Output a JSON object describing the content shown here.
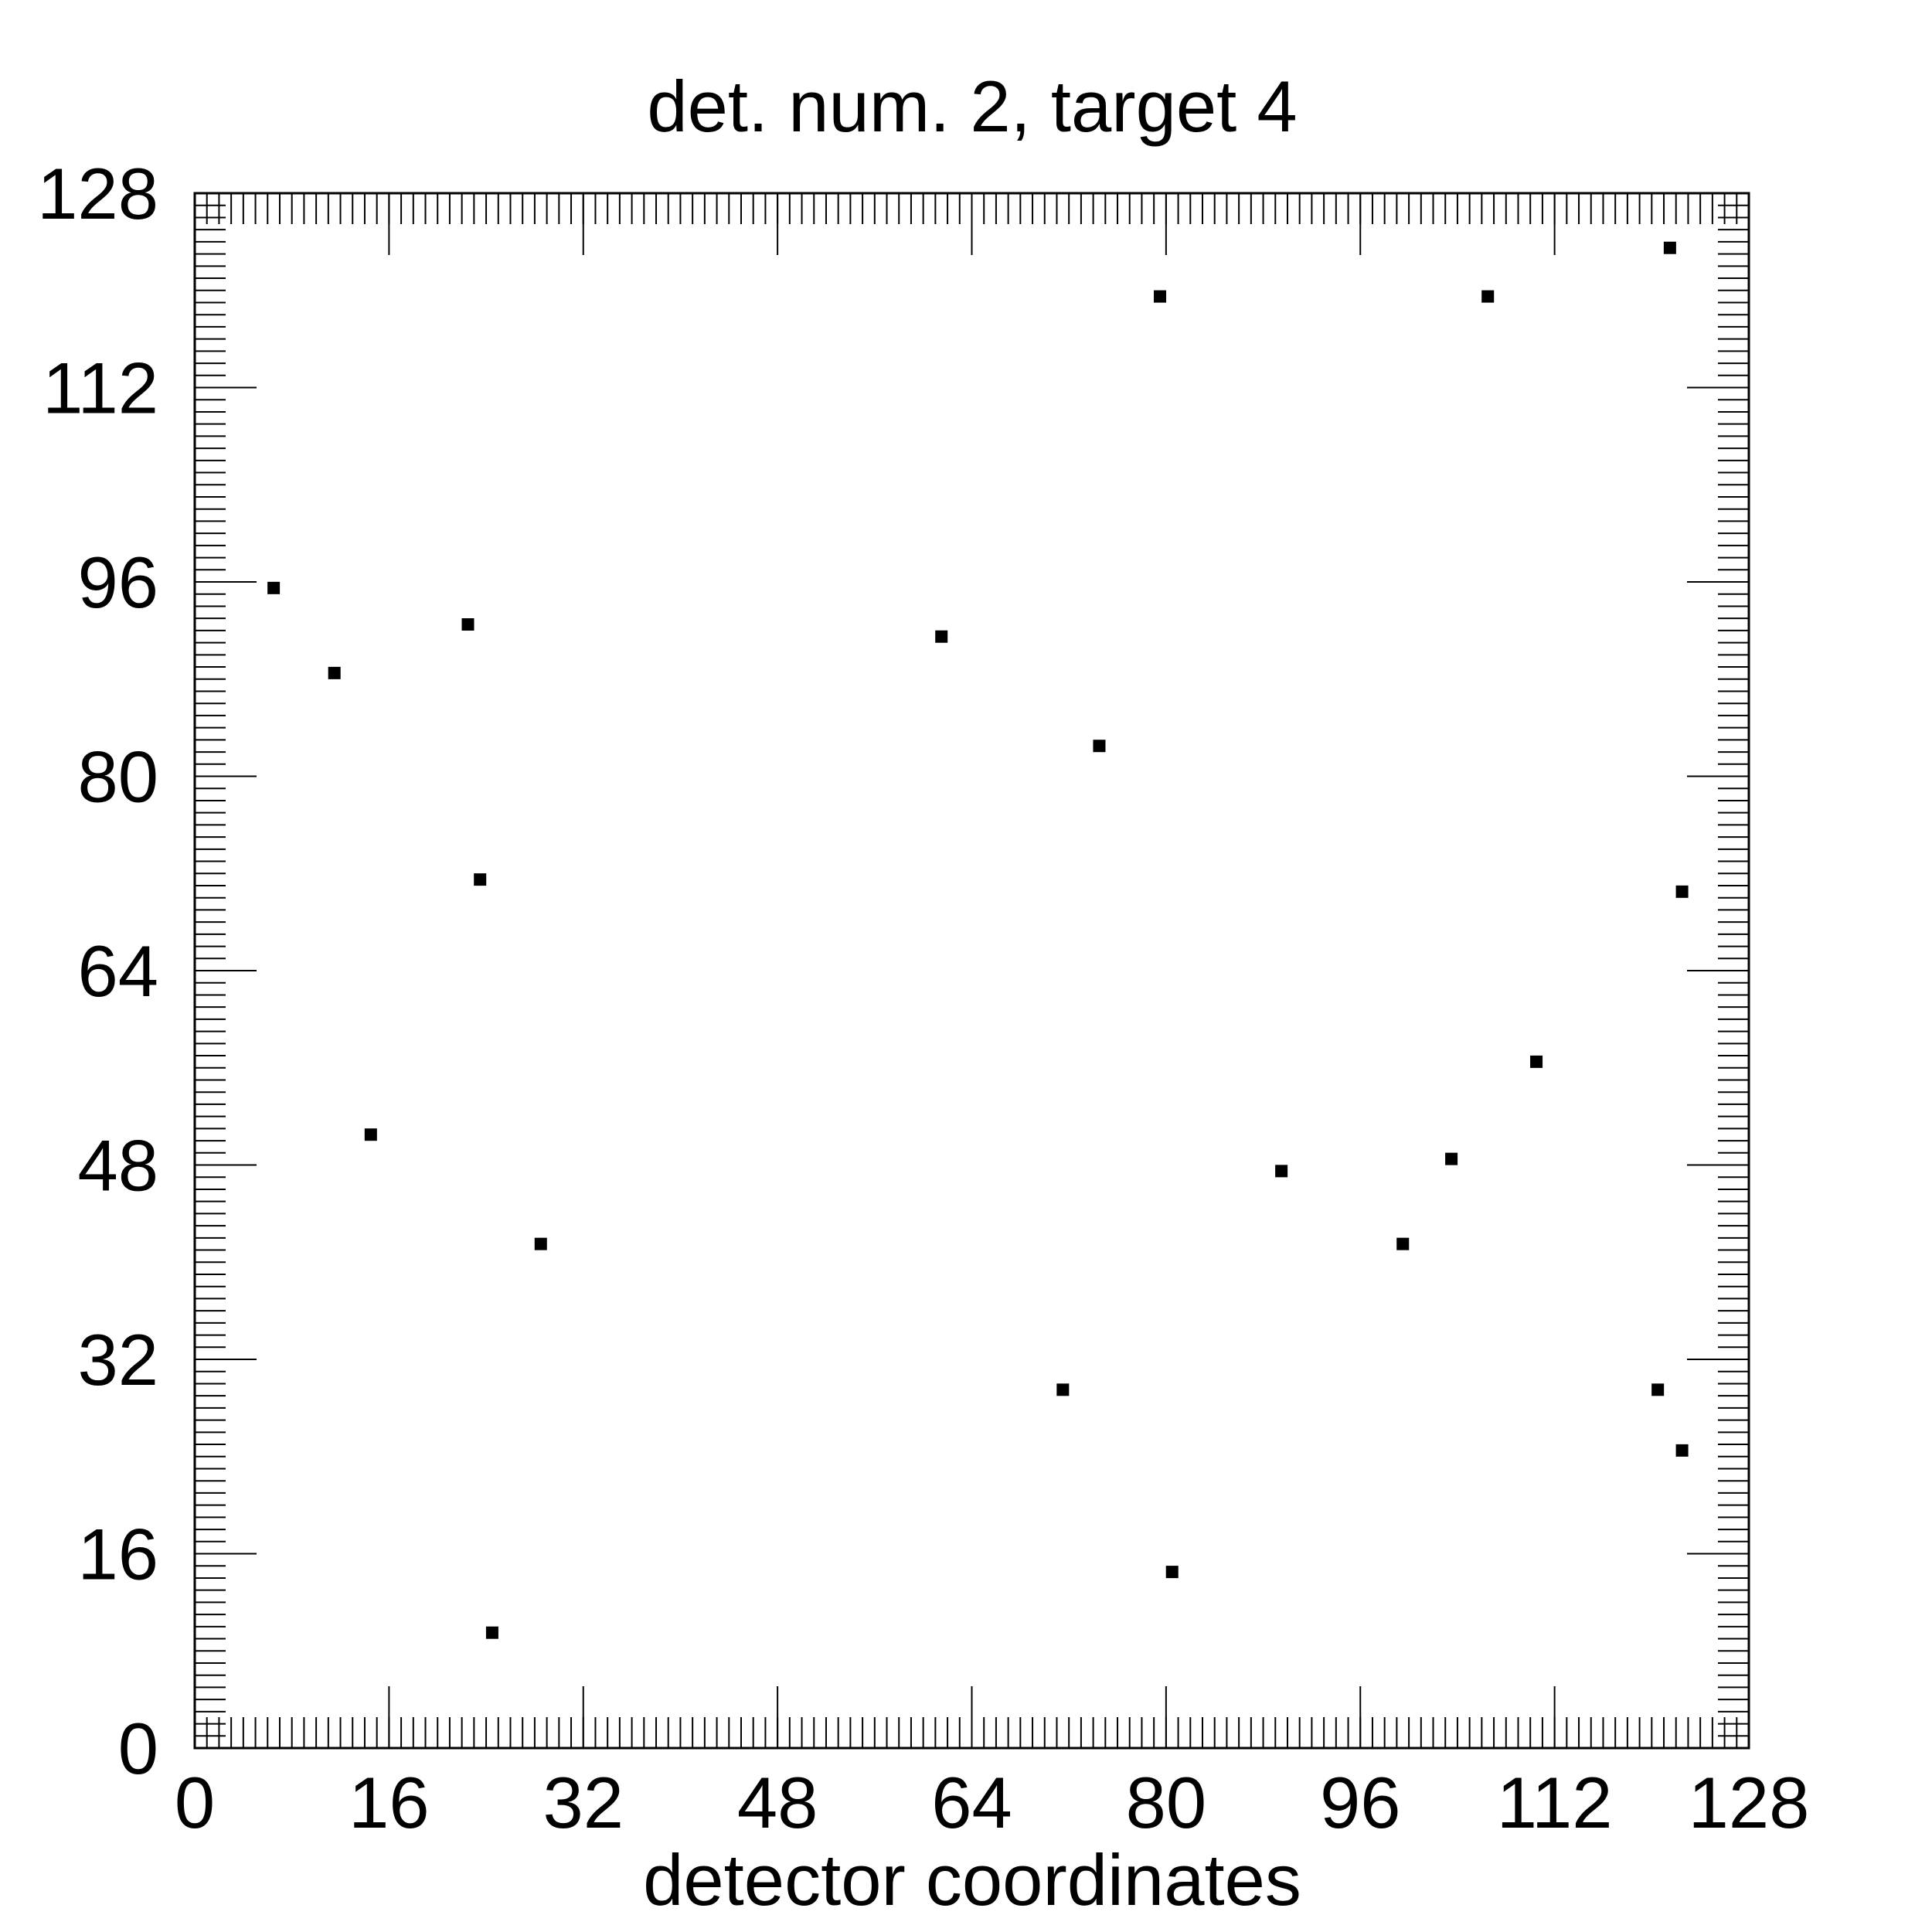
{
  "chart_data": {
    "type": "scatter",
    "title": "det. num. 2, target 4",
    "xlabel": "detector coordinates",
    "ylabel": "",
    "xlim": [
      0,
      128
    ],
    "ylim": [
      0,
      128
    ],
    "xticks": [
      0,
      16,
      32,
      48,
      64,
      80,
      96,
      112,
      128
    ],
    "yticks": [
      0,
      16,
      32,
      48,
      64,
      80,
      96,
      112,
      128
    ],
    "minor_tick_step": 1,
    "grid": false,
    "marker": "square",
    "color": "#000000",
    "points": [
      {
        "x": 6.5,
        "y": 95.5
      },
      {
        "x": 11.5,
        "y": 88.5
      },
      {
        "x": 14.5,
        "y": 50.5
      },
      {
        "x": 22.5,
        "y": 92.5
      },
      {
        "x": 23.5,
        "y": 71.5
      },
      {
        "x": 24.5,
        "y": 9.5
      },
      {
        "x": 28.5,
        "y": 41.5
      },
      {
        "x": 61.5,
        "y": 91.5
      },
      {
        "x": 71.5,
        "y": 29.5
      },
      {
        "x": 74.5,
        "y": 82.5
      },
      {
        "x": 79.5,
        "y": 119.5
      },
      {
        "x": 80.5,
        "y": 14.5
      },
      {
        "x": 89.5,
        "y": 47.5
      },
      {
        "x": 99.5,
        "y": 41.5
      },
      {
        "x": 103.5,
        "y": 48.5
      },
      {
        "x": 106.5,
        "y": 119.5
      },
      {
        "x": 110.5,
        "y": 56.5
      },
      {
        "x": 120.5,
        "y": 29.5
      },
      {
        "x": 121.5,
        "y": 123.5
      },
      {
        "x": 122.5,
        "y": 70.5
      },
      {
        "x": 122.5,
        "y": 24.5
      }
    ]
  }
}
